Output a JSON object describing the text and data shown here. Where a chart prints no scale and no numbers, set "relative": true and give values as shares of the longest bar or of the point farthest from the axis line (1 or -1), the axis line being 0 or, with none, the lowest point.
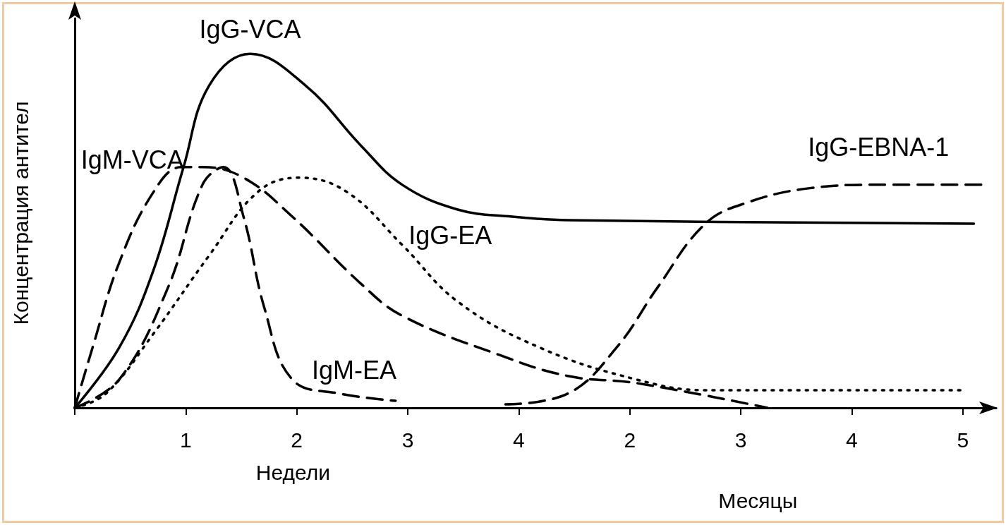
{
  "chart_data": {
    "type": "line",
    "ylabel": "Концентрация антител",
    "xlabel": "Недели",
    "relative": true,
    "tick_labels": "x",
    "grid": false,
    "marker": "none",
    "legend": false,
    "xlim": [
      0,
      8.3
    ],
    "xticks": [
      {
        "value": 0,
        "label": null
      },
      1,
      2,
      3,
      4
    ],
    "x2lim": [
      -3,
      5.3
    ],
    "x2ticks": [
      2,
      3,
      4,
      5
    ],
    "x2label": "Месяцы",
    "series": [
      {
        "name": "IgG-VCA",
        "color": "#000000",
        "line_style": "solid",
        "x": [
          0,
          0.4,
          0.71,
          0.98,
          1.21,
          1.58,
          2.08,
          2.58,
          2.95,
          3.45,
          3.94,
          4.44,
          8.1
        ],
        "values": [
          0,
          0.17,
          0.39,
          0.68,
          0.91,
          1.0,
          0.91,
          0.74,
          0.63,
          0.56,
          0.54,
          0.53,
          0.52
        ]
      },
      {
        "name": "IgM-VCA",
        "color": "#000000",
        "line_style": "dashed",
        "x": [
          0,
          0.16,
          0.4,
          0.71,
          0.96,
          1.15,
          1.52,
          1.96,
          2.58,
          2.95,
          3.82,
          4.44,
          5.06,
          6.24
        ],
        "values": [
          0,
          0.17,
          0.41,
          0.61,
          0.68,
          0.68,
          0.65,
          0.54,
          0.35,
          0.26,
          0.15,
          0.09,
          0.07,
          0
        ]
      },
      {
        "name": "IgG-EA",
        "color": "#000000",
        "line_style": "dotted",
        "x": [
          0,
          0.28,
          0.71,
          1.21,
          1.65,
          2.02,
          2.45,
          2.95,
          3.45,
          4.19,
          5.06,
          5.68,
          8.0
        ],
        "values": [
          0,
          0.04,
          0.21,
          0.43,
          0.61,
          0.65,
          0.61,
          0.46,
          0.3,
          0.17,
          0.08,
          0.05,
          0.05
        ]
      },
      {
        "name": "IgM-EA",
        "color": "#000000",
        "line_style": "dashed",
        "x": [
          0,
          0.4,
          0.84,
          1.15,
          1.34,
          1.52,
          1.71,
          1.96,
          2.39,
          2.89
        ],
        "values": [
          0,
          0.08,
          0.34,
          0.63,
          0.68,
          0.54,
          0.28,
          0.08,
          0.04,
          0.02
        ]
      },
      {
        "name": "IgG-EBNA-1",
        "color": "#000000",
        "line_style": "dashed",
        "x": [
          3.88,
          4.44,
          4.88,
          5.25,
          5.68,
          6.06,
          6.61,
          7.24,
          8.17
        ],
        "values": [
          0.01,
          0.04,
          0.17,
          0.34,
          0.52,
          0.58,
          0.62,
          0.63,
          0.63
        ]
      }
    ]
  }
}
